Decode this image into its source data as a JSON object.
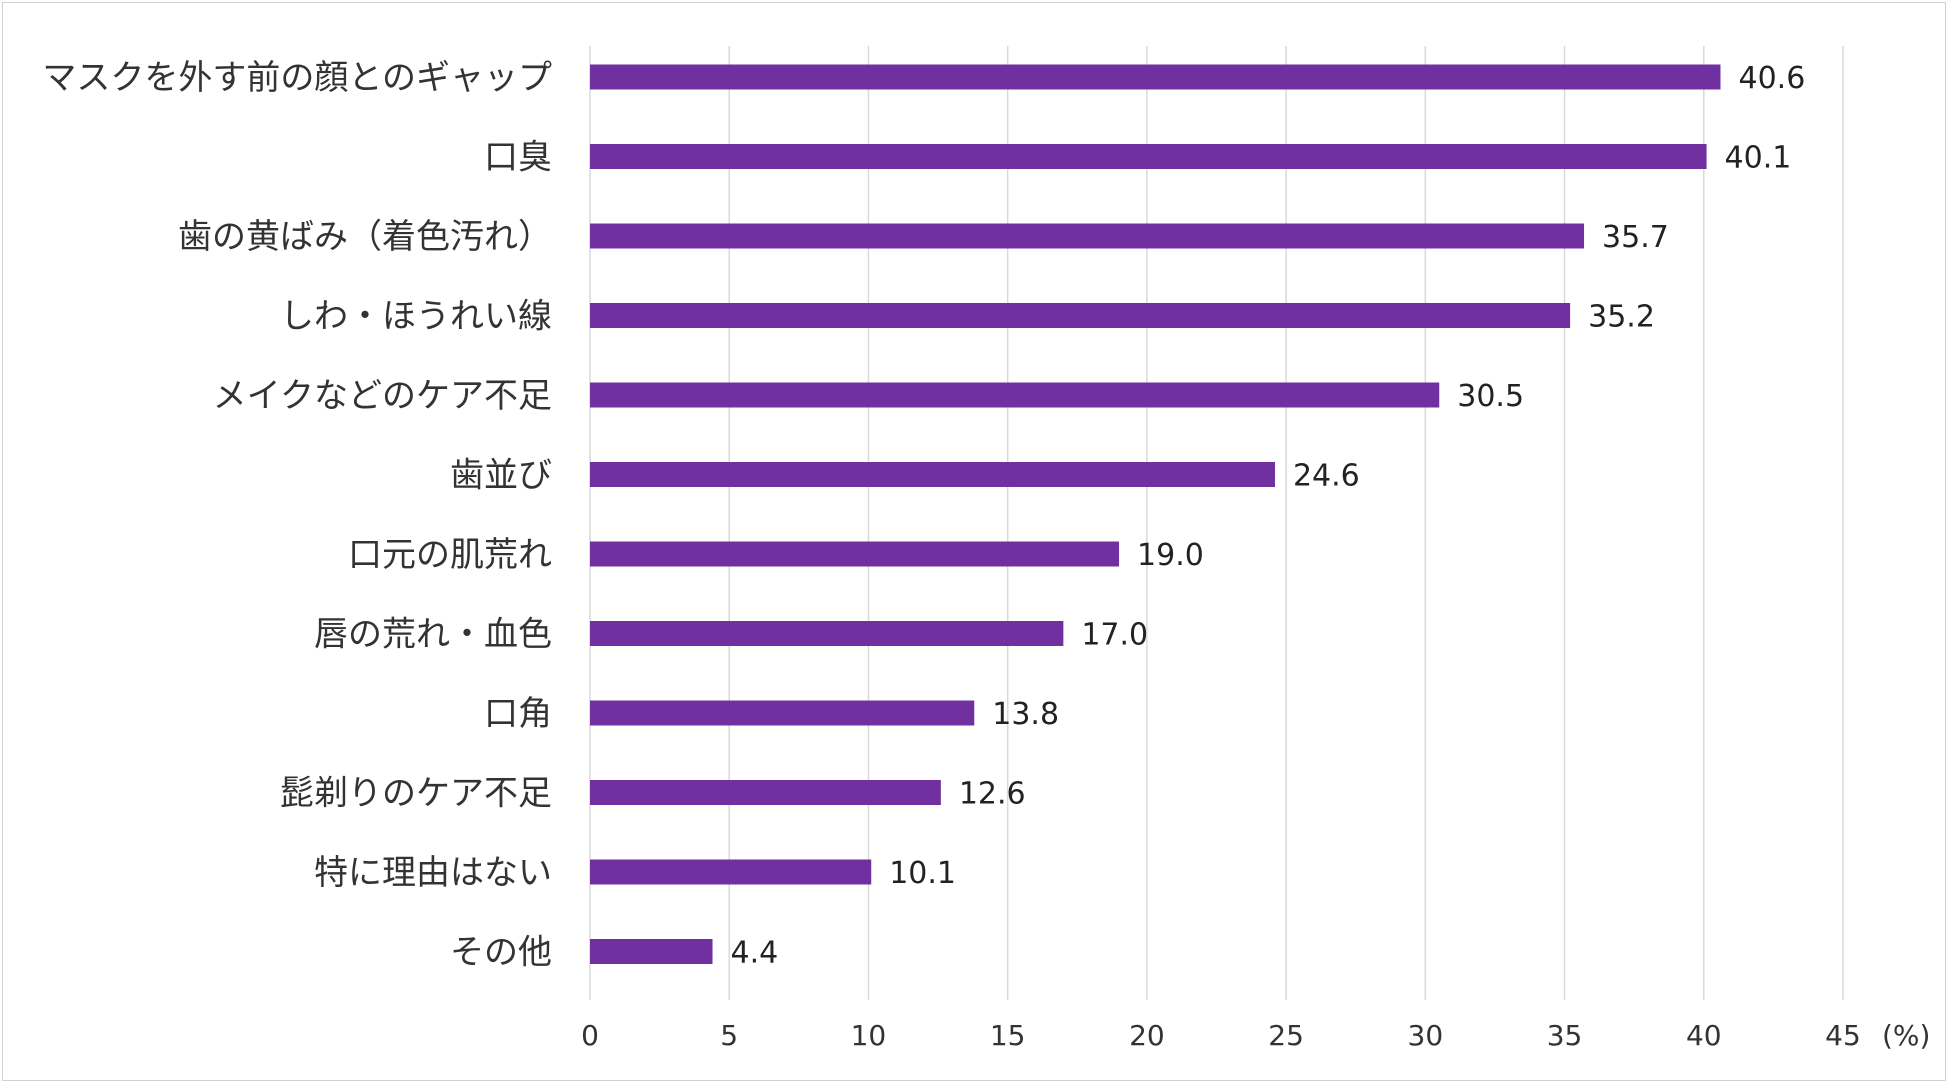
{
  "chart_data": {
    "type": "bar",
    "orientation": "horizontal",
    "title": "",
    "xlabel": "",
    "ylabel": "",
    "unit_label": "(%)",
    "xlim": [
      0,
      45
    ],
    "x_ticks": [
      0,
      5,
      10,
      15,
      20,
      25,
      30,
      35,
      40,
      45
    ],
    "grid": true,
    "bar_color": "#7030a0",
    "categories": [
      "マスクを外す前の顔とのギャップ",
      "口臭",
      "歯の黄ばみ（着色汚れ）",
      "しわ・ほうれい線",
      "メイクなどのケア不足",
      "歯並び",
      "口元の肌荒れ",
      "唇の荒れ・血色",
      "口角",
      "髭剃りのケア不足",
      "特に理由はない",
      "その他"
    ],
    "values": [
      40.6,
      40.1,
      35.7,
      35.2,
      30.5,
      24.6,
      19.0,
      17.0,
      13.8,
      12.6,
      10.1,
      4.4
    ],
    "value_labels": [
      "40.6",
      "40.1",
      "35.7",
      "35.2",
      "30.5",
      "24.6",
      "19.0",
      "17.0",
      "13.8",
      "12.6",
      "10.1",
      "4.4"
    ]
  }
}
